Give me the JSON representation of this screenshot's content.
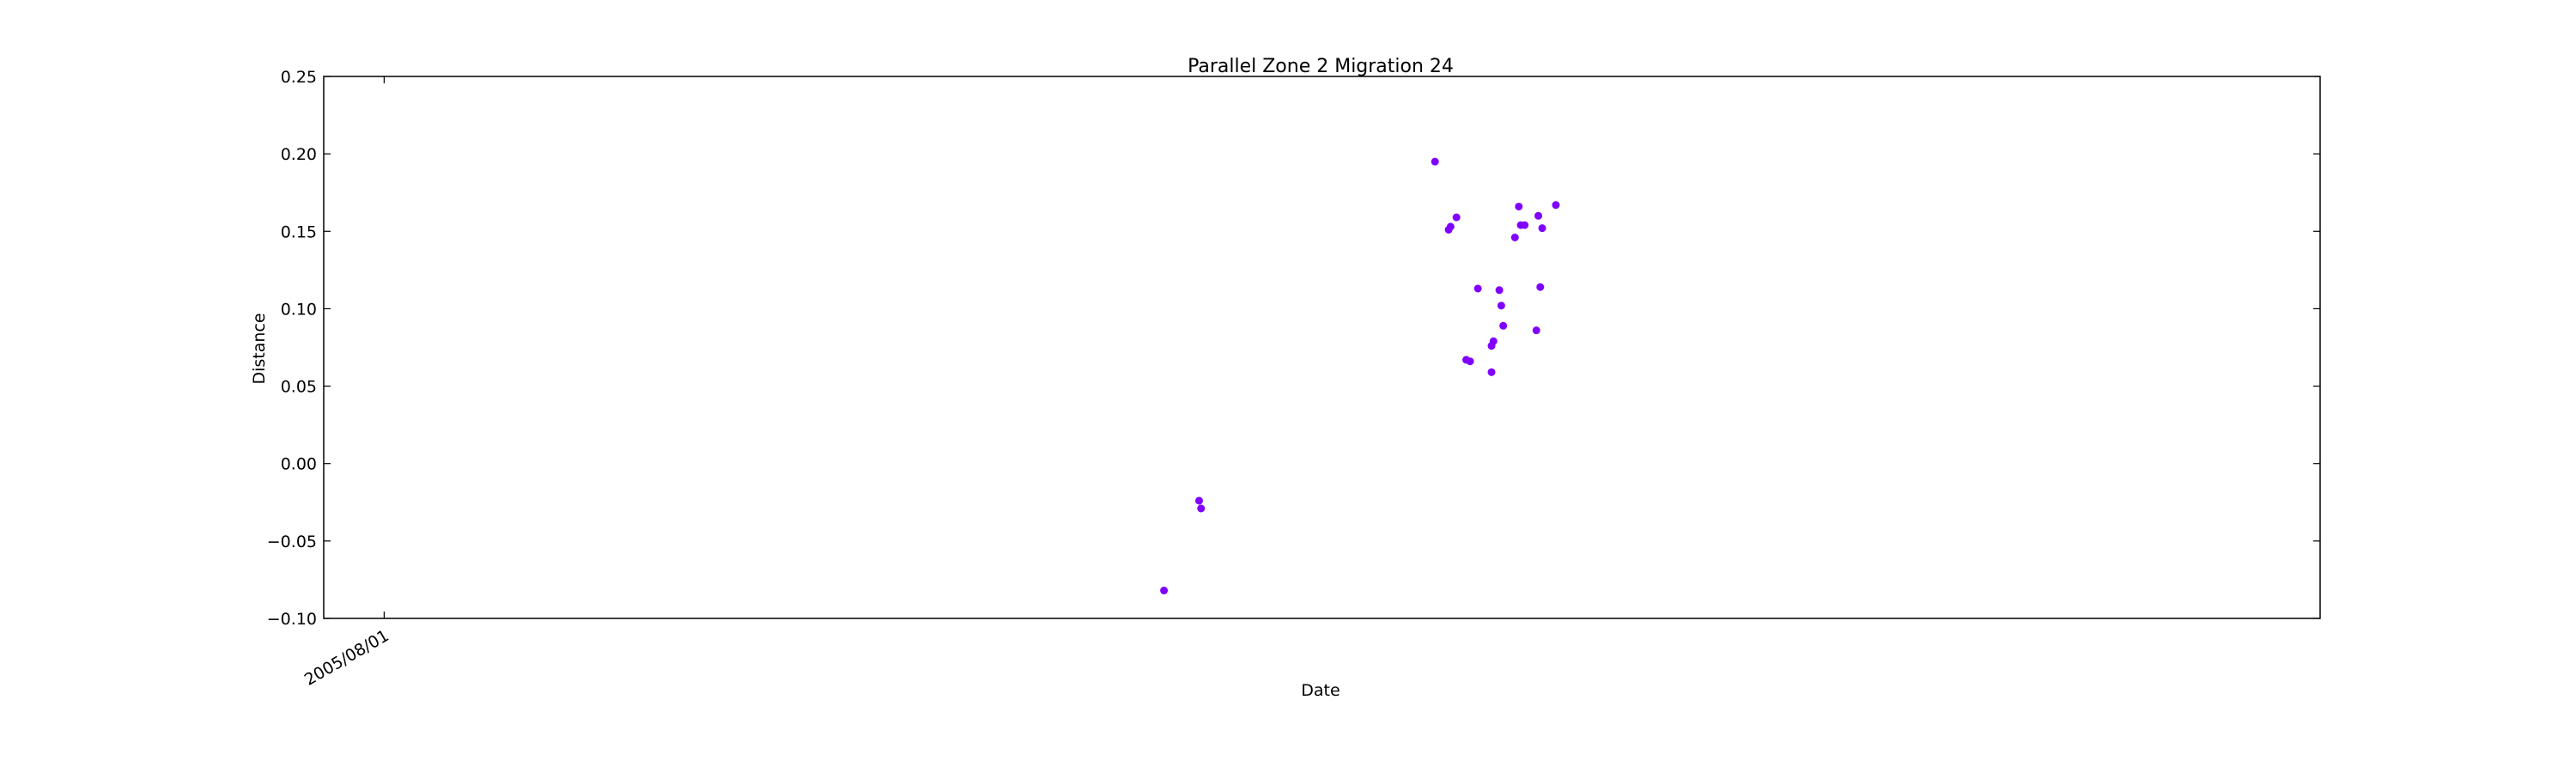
{
  "chart_data": {
    "type": "scatter",
    "title": "Parallel Zone 2 Migration 24",
    "xlabel": "Date",
    "ylabel": "Distance",
    "x_tick_labels": [
      "2005/08/01"
    ],
    "y_ticks": [
      "0.25",
      "0.20",
      "0.15",
      "0.10",
      "0.05",
      "0.00",
      "−0.05",
      "−0.10"
    ],
    "ylim": [
      -0.1,
      0.25
    ],
    "xlim": [
      "2005-07-01",
      "2008-04-20"
    ],
    "grid": false,
    "legend": "none",
    "marker_color": "#8000ff",
    "series": [
      {
        "points": [
          {
            "x": "2006-09-05",
            "y": -0.082
          },
          {
            "x": "2006-09-23",
            "y": -0.024
          },
          {
            "x": "2006-09-24",
            "y": -0.029
          },
          {
            "x": "2007-01-22",
            "y": 0.195
          },
          {
            "x": "2007-01-29",
            "y": 0.151
          },
          {
            "x": "2007-01-30",
            "y": 0.153
          },
          {
            "x": "2007-02-02",
            "y": 0.159
          },
          {
            "x": "2007-02-07",
            "y": 0.067
          },
          {
            "x": "2007-02-09",
            "y": 0.066
          },
          {
            "x": "2007-02-13",
            "y": 0.113
          },
          {
            "x": "2007-02-20",
            "y": 0.059
          },
          {
            "x": "2007-02-20",
            "y": 0.076
          },
          {
            "x": "2007-02-21",
            "y": 0.079
          },
          {
            "x": "2007-02-24",
            "y": 0.112
          },
          {
            "x": "2007-02-25",
            "y": 0.102
          },
          {
            "x": "2007-02-26",
            "y": 0.089
          },
          {
            "x": "2007-03-04",
            "y": 0.146
          },
          {
            "x": "2007-03-06",
            "y": 0.166
          },
          {
            "x": "2007-03-07",
            "y": 0.154
          },
          {
            "x": "2007-03-09",
            "y": 0.154
          },
          {
            "x": "2007-03-15",
            "y": 0.086
          },
          {
            "x": "2007-03-16",
            "y": 0.16
          },
          {
            "x": "2007-03-17",
            "y": 0.114
          },
          {
            "x": "2007-03-18",
            "y": 0.152
          },
          {
            "x": "2007-03-25",
            "y": 0.167
          }
        ]
      }
    ]
  }
}
